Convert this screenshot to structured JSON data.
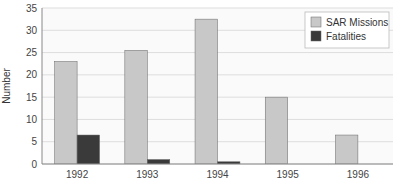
{
  "chart_data": {
    "type": "bar",
    "ylabel": "Number",
    "categories": [
      "1992",
      "1993",
      "1994",
      "1995",
      "1996"
    ],
    "series": [
      {
        "name": "SAR Missions",
        "color": "#c8c8c8",
        "values": [
          23,
          25.5,
          32.5,
          15,
          6.5
        ]
      },
      {
        "name": "Fatalities",
        "color": "#3a3a3a",
        "values": [
          6.5,
          1,
          0.5,
          0,
          0
        ]
      }
    ],
    "ylim": [
      0,
      35
    ],
    "yticks": [
      0,
      5,
      10,
      15,
      20,
      25,
      30,
      35
    ],
    "grid": true,
    "legend": "upper right"
  }
}
